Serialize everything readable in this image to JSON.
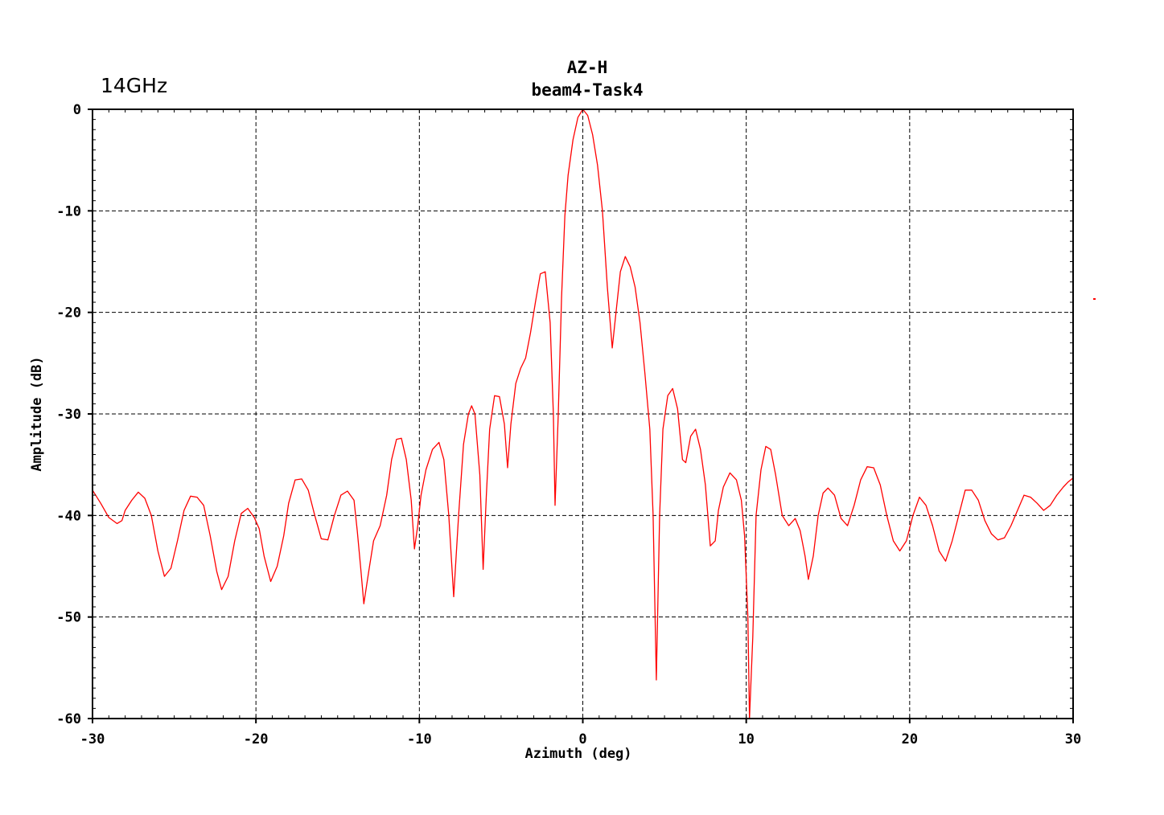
{
  "chart_data": {
    "type": "line",
    "title": "AZ-H",
    "subtitle": "beam4-Task4",
    "corner_note": "14GHz",
    "xlabel": "Azimuth (deg)",
    "ylabel": "Amplitude (dB)",
    "xlim": [
      -30,
      30
    ],
    "ylim": [
      -60,
      0
    ],
    "xticks": [
      -30,
      -20,
      -10,
      0,
      10,
      20,
      30
    ],
    "xtick_labels": [
      "-30",
      "-20",
      "-10",
      "0",
      "10",
      "20",
      "30"
    ],
    "yticks": [
      0,
      -10,
      -20,
      -30,
      -40,
      -50,
      -60
    ],
    "ytick_labels": [
      "0",
      "-10",
      "-20",
      "-30",
      "-40",
      "-50",
      "-60"
    ],
    "grid": true,
    "line_color": "#ff0000",
    "series": [
      {
        "points": [
          [
            -30.0,
            -37.5
          ],
          [
            -29.5,
            -38.8
          ],
          [
            -29.0,
            -40.2
          ],
          [
            -28.5,
            -40.8
          ],
          [
            -28.2,
            -40.5
          ],
          [
            -28.0,
            -39.5
          ],
          [
            -27.6,
            -38.5
          ],
          [
            -27.2,
            -37.7
          ],
          [
            -26.8,
            -38.3
          ],
          [
            -26.4,
            -40.0
          ],
          [
            -26.0,
            -43.5
          ],
          [
            -25.6,
            -46.0
          ],
          [
            -25.2,
            -45.2
          ],
          [
            -24.8,
            -42.5
          ],
          [
            -24.4,
            -39.5
          ],
          [
            -24.0,
            -38.1
          ],
          [
            -23.6,
            -38.2
          ],
          [
            -23.2,
            -39.0
          ],
          [
            -22.8,
            -42.0
          ],
          [
            -22.4,
            -45.5
          ],
          [
            -22.1,
            -47.3
          ],
          [
            -21.7,
            -46.0
          ],
          [
            -21.3,
            -42.5
          ],
          [
            -20.9,
            -39.8
          ],
          [
            -20.5,
            -39.3
          ],
          [
            -20.1,
            -40.2
          ],
          [
            -19.8,
            -41.3
          ],
          [
            -19.5,
            -44.0
          ],
          [
            -19.1,
            -46.5
          ],
          [
            -18.7,
            -45.0
          ],
          [
            -18.3,
            -42.0
          ],
          [
            -18.0,
            -38.8
          ],
          [
            -17.6,
            -36.5
          ],
          [
            -17.2,
            -36.4
          ],
          [
            -16.8,
            -37.5
          ],
          [
            -16.4,
            -40.0
          ],
          [
            -16.0,
            -42.3
          ],
          [
            -15.6,
            -42.4
          ],
          [
            -15.2,
            -40.0
          ],
          [
            -14.8,
            -38.0
          ],
          [
            -14.4,
            -37.6
          ],
          [
            -14.0,
            -38.5
          ],
          [
            -13.8,
            -41.5
          ],
          [
            -13.6,
            -45.0
          ],
          [
            -13.4,
            -48.7
          ],
          [
            -13.1,
            -45.5
          ],
          [
            -12.8,
            -42.5
          ],
          [
            -12.4,
            -41.0
          ],
          [
            -12.0,
            -38.0
          ],
          [
            -11.7,
            -34.5
          ],
          [
            -11.4,
            -32.5
          ],
          [
            -11.1,
            -32.4
          ],
          [
            -10.8,
            -34.5
          ],
          [
            -10.5,
            -38.5
          ],
          [
            -10.3,
            -43.3
          ],
          [
            -10.1,
            -41.0
          ],
          [
            -9.9,
            -38.0
          ],
          [
            -9.6,
            -35.5
          ],
          [
            -9.2,
            -33.5
          ],
          [
            -8.8,
            -32.8
          ],
          [
            -8.5,
            -34.5
          ],
          [
            -8.2,
            -40.0
          ],
          [
            -7.9,
            -48.0
          ],
          [
            -7.6,
            -40.0
          ],
          [
            -7.3,
            -33.0
          ],
          [
            -7.0,
            -30.0
          ],
          [
            -6.8,
            -29.2
          ],
          [
            -6.6,
            -30.0
          ],
          [
            -6.3,
            -36.0
          ],
          [
            -6.1,
            -45.3
          ],
          [
            -5.9,
            -38.0
          ],
          [
            -5.7,
            -31.5
          ],
          [
            -5.4,
            -28.2
          ],
          [
            -5.1,
            -28.3
          ],
          [
            -4.8,
            -31.0
          ],
          [
            -4.6,
            -35.3
          ],
          [
            -4.4,
            -31.0
          ],
          [
            -4.1,
            -27.0
          ],
          [
            -3.8,
            -25.5
          ],
          [
            -3.5,
            -24.5
          ],
          [
            -3.2,
            -22.0
          ],
          [
            -2.9,
            -19.0
          ],
          [
            -2.6,
            -16.2
          ],
          [
            -2.3,
            -16.0
          ],
          [
            -2.0,
            -21.0
          ],
          [
            -1.8,
            -30.0
          ],
          [
            -1.7,
            -39.0
          ],
          [
            -1.5,
            -30.0
          ],
          [
            -1.3,
            -18.5
          ],
          [
            -1.1,
            -10.5
          ],
          [
            -0.9,
            -6.5
          ],
          [
            -0.6,
            -3.0
          ],
          [
            -0.3,
            -0.8
          ],
          [
            0.0,
            0.0
          ],
          [
            0.3,
            -0.6
          ],
          [
            0.6,
            -2.5
          ],
          [
            0.9,
            -5.5
          ],
          [
            1.2,
            -10.0
          ],
          [
            1.5,
            -17.5
          ],
          [
            1.8,
            -23.5
          ],
          [
            2.0,
            -20.5
          ],
          [
            2.3,
            -16.0
          ],
          [
            2.6,
            -14.5
          ],
          [
            2.9,
            -15.5
          ],
          [
            3.2,
            -17.5
          ],
          [
            3.5,
            -21.0
          ],
          [
            3.8,
            -26.0
          ],
          [
            4.1,
            -31.5
          ],
          [
            4.3,
            -40.0
          ],
          [
            4.5,
            -56.2
          ],
          [
            4.7,
            -40.0
          ],
          [
            4.9,
            -31.5
          ],
          [
            5.2,
            -28.2
          ],
          [
            5.5,
            -27.5
          ],
          [
            5.8,
            -29.5
          ],
          [
            6.1,
            -34.5
          ],
          [
            6.3,
            -34.8
          ],
          [
            6.6,
            -32.2
          ],
          [
            6.9,
            -31.5
          ],
          [
            7.2,
            -33.5
          ],
          [
            7.5,
            -37.0
          ],
          [
            7.8,
            -43.0
          ],
          [
            8.1,
            -42.5
          ],
          [
            8.3,
            -39.5
          ],
          [
            8.6,
            -37.2
          ],
          [
            9.0,
            -35.8
          ],
          [
            9.4,
            -36.5
          ],
          [
            9.7,
            -38.5
          ],
          [
            9.9,
            -42.0
          ],
          [
            10.1,
            -50.0
          ],
          [
            10.2,
            -60.0
          ],
          [
            10.4,
            -52.0
          ],
          [
            10.6,
            -40.0
          ],
          [
            10.9,
            -35.5
          ],
          [
            11.2,
            -33.2
          ],
          [
            11.5,
            -33.5
          ],
          [
            11.8,
            -36.0
          ],
          [
            12.2,
            -40.0
          ],
          [
            12.6,
            -41.0
          ],
          [
            13.0,
            -40.3
          ],
          [
            13.3,
            -41.5
          ],
          [
            13.6,
            -44.0
          ],
          [
            13.8,
            -46.3
          ],
          [
            14.1,
            -44.0
          ],
          [
            14.4,
            -40.0
          ],
          [
            14.7,
            -37.8
          ],
          [
            15.0,
            -37.3
          ],
          [
            15.4,
            -38.0
          ],
          [
            15.8,
            -40.3
          ],
          [
            16.2,
            -41.0
          ],
          [
            16.6,
            -39.0
          ],
          [
            17.0,
            -36.5
          ],
          [
            17.4,
            -35.2
          ],
          [
            17.8,
            -35.3
          ],
          [
            18.2,
            -37.0
          ],
          [
            18.6,
            -40.0
          ],
          [
            19.0,
            -42.5
          ],
          [
            19.4,
            -43.5
          ],
          [
            19.8,
            -42.5
          ],
          [
            20.2,
            -40.0
          ],
          [
            20.6,
            -38.2
          ],
          [
            21.0,
            -39.0
          ],
          [
            21.4,
            -41.0
          ],
          [
            21.8,
            -43.5
          ],
          [
            22.2,
            -44.5
          ],
          [
            22.6,
            -42.5
          ],
          [
            23.0,
            -40.0
          ],
          [
            23.4,
            -37.5
          ],
          [
            23.8,
            -37.5
          ],
          [
            24.2,
            -38.5
          ],
          [
            24.6,
            -40.5
          ],
          [
            25.0,
            -41.8
          ],
          [
            25.4,
            -42.4
          ],
          [
            25.8,
            -42.2
          ],
          [
            26.2,
            -41.0
          ],
          [
            26.6,
            -39.5
          ],
          [
            27.0,
            -38.0
          ],
          [
            27.4,
            -38.2
          ],
          [
            27.8,
            -38.8
          ],
          [
            28.2,
            -39.5
          ],
          [
            28.6,
            -39.0
          ],
          [
            29.0,
            -38.0
          ],
          [
            29.4,
            -37.2
          ],
          [
            29.7,
            -36.7
          ],
          [
            30.0,
            -36.3
          ]
        ]
      }
    ]
  }
}
